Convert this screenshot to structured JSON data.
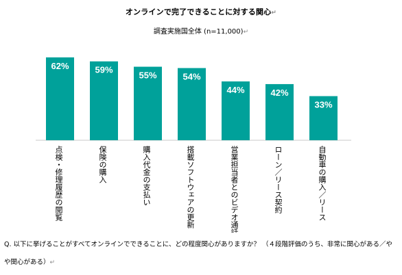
{
  "chart_data": {
    "type": "bar",
    "title": "オンラインで完了できることに対する関心",
    "subtitle": "調査実施国全体 (n=11,000)",
    "categories": [
      "点検・修理履歴の閲覧",
      "保険の購入",
      "購入代金の支払い",
      "搭載ソフトウェアの更新",
      "営業担当者とのビデオ通話",
      "ローン／リース契約",
      "自動車の購入／リース"
    ],
    "values": [
      62,
      59,
      55,
      54,
      44,
      42,
      33
    ],
    "value_labels": [
      "62%",
      "59%",
      "55%",
      "54%",
      "44%",
      "42%",
      "33%"
    ],
    "ylim": [
      0,
      65
    ],
    "colors": {
      "bar": "#00a19a",
      "value_label": "#ffffff",
      "axis": "#c8c8c8"
    },
    "grid": false,
    "legend": "none"
  },
  "question": "Q.  以下に挙げることがすべてオンラインでできることに、どの程度関心がありますか？ （４段階評価のうち、非常に関心がある／やや関心がある）",
  "return_mark": "↵"
}
